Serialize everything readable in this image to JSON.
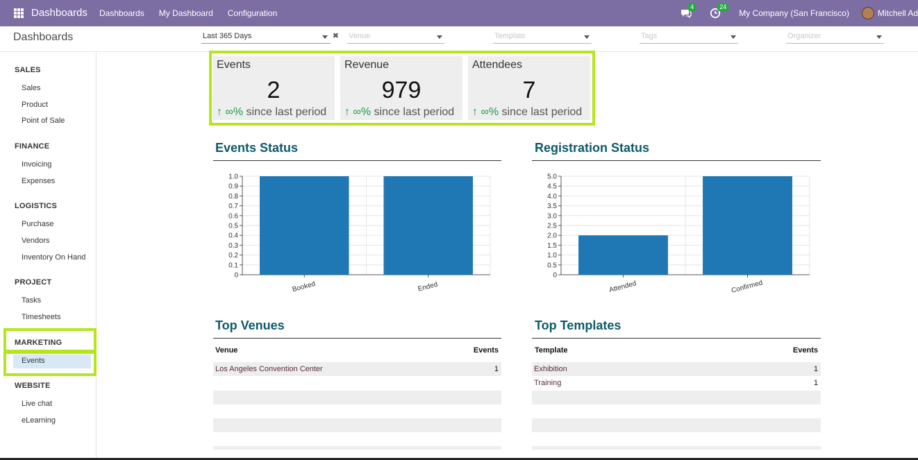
{
  "navbar": {
    "brand": "Dashboards",
    "menu": [
      "Dashboards",
      "My Dashboard",
      "Configuration"
    ],
    "chat_badge": "4",
    "activity_badge": "24",
    "company": "My Company (San Francisco)",
    "user": "Mitchell Ad"
  },
  "control_panel": {
    "title": "Dashboards",
    "filters": {
      "period": "Last 365 Days",
      "venue": "Venue",
      "template": "Template",
      "tags": "Tags",
      "organizer": "Organizer"
    }
  },
  "sidebar": {
    "sections": [
      {
        "title": "SALES",
        "items": [
          "Sales",
          "Product",
          "Point of Sale"
        ]
      },
      {
        "title": "FINANCE",
        "items": [
          "Invoicing",
          "Expenses"
        ]
      },
      {
        "title": "LOGISTICS",
        "items": [
          "Purchase",
          "Vendors",
          "Inventory On Hand"
        ]
      },
      {
        "title": "PROJECT",
        "items": [
          "Tasks",
          "Timesheets"
        ]
      },
      {
        "title": "MARKETING",
        "items": [
          "Events"
        ]
      },
      {
        "title": "WEBSITE",
        "items": [
          "Live chat",
          "eLearning"
        ]
      }
    ],
    "active_item": "Events"
  },
  "kpis": [
    {
      "label": "Events",
      "value": "2",
      "trend_arrow": "↑",
      "trend_pct": "∞%",
      "trend_text": "since last period"
    },
    {
      "label": "Revenue",
      "value": "979",
      "trend_arrow": "↑",
      "trend_pct": "∞%",
      "trend_text": "since last period"
    },
    {
      "label": "Attendees",
      "value": "7",
      "trend_arrow": "↑",
      "trend_pct": "∞%",
      "trend_text": "since last period"
    }
  ],
  "sections": {
    "events_status": "Events Status",
    "registration_status": "Registration Status",
    "top_venues": "Top Venues",
    "top_templates": "Top Templates"
  },
  "chart_data": [
    {
      "type": "bar",
      "title": "Events Status",
      "categories": [
        "Booked",
        "Ended"
      ],
      "values": [
        1,
        1
      ],
      "ylim": [
        0,
        1
      ],
      "yticks": [
        "0",
        "0.1",
        "0.2",
        "0.3",
        "0.4",
        "0.5",
        "0.6",
        "0.7",
        "0.8",
        "0.9",
        "1.0"
      ],
      "color": "#1f77b4",
      "grid": true
    },
    {
      "type": "bar",
      "title": "Registration Status",
      "categories": [
        "Attended",
        "Confirmed"
      ],
      "values": [
        2,
        5
      ],
      "ylim": [
        0,
        5
      ],
      "yticks": [
        "0",
        "0.5",
        "1.0",
        "1.5",
        "2.0",
        "2.5",
        "3.0",
        "3.5",
        "4.0",
        "4.5",
        "5.0"
      ],
      "color": "#1f77b4",
      "grid": true
    }
  ],
  "top_venues": {
    "headers": [
      "Venue",
      "Events"
    ],
    "rows": [
      [
        "Los Angeles Convention Center",
        "1"
      ]
    ]
  },
  "top_templates": {
    "headers": [
      "Template",
      "Events"
    ],
    "rows": [
      [
        "Exhibition",
        "1"
      ],
      [
        "Training",
        "1"
      ]
    ]
  },
  "colors": {
    "navbar": "#7c6ea3",
    "accent_title": "#0d5a6a",
    "highlight": "#b5e61d",
    "trend_up": "#1a9a46",
    "bar": "#1f77b4"
  }
}
